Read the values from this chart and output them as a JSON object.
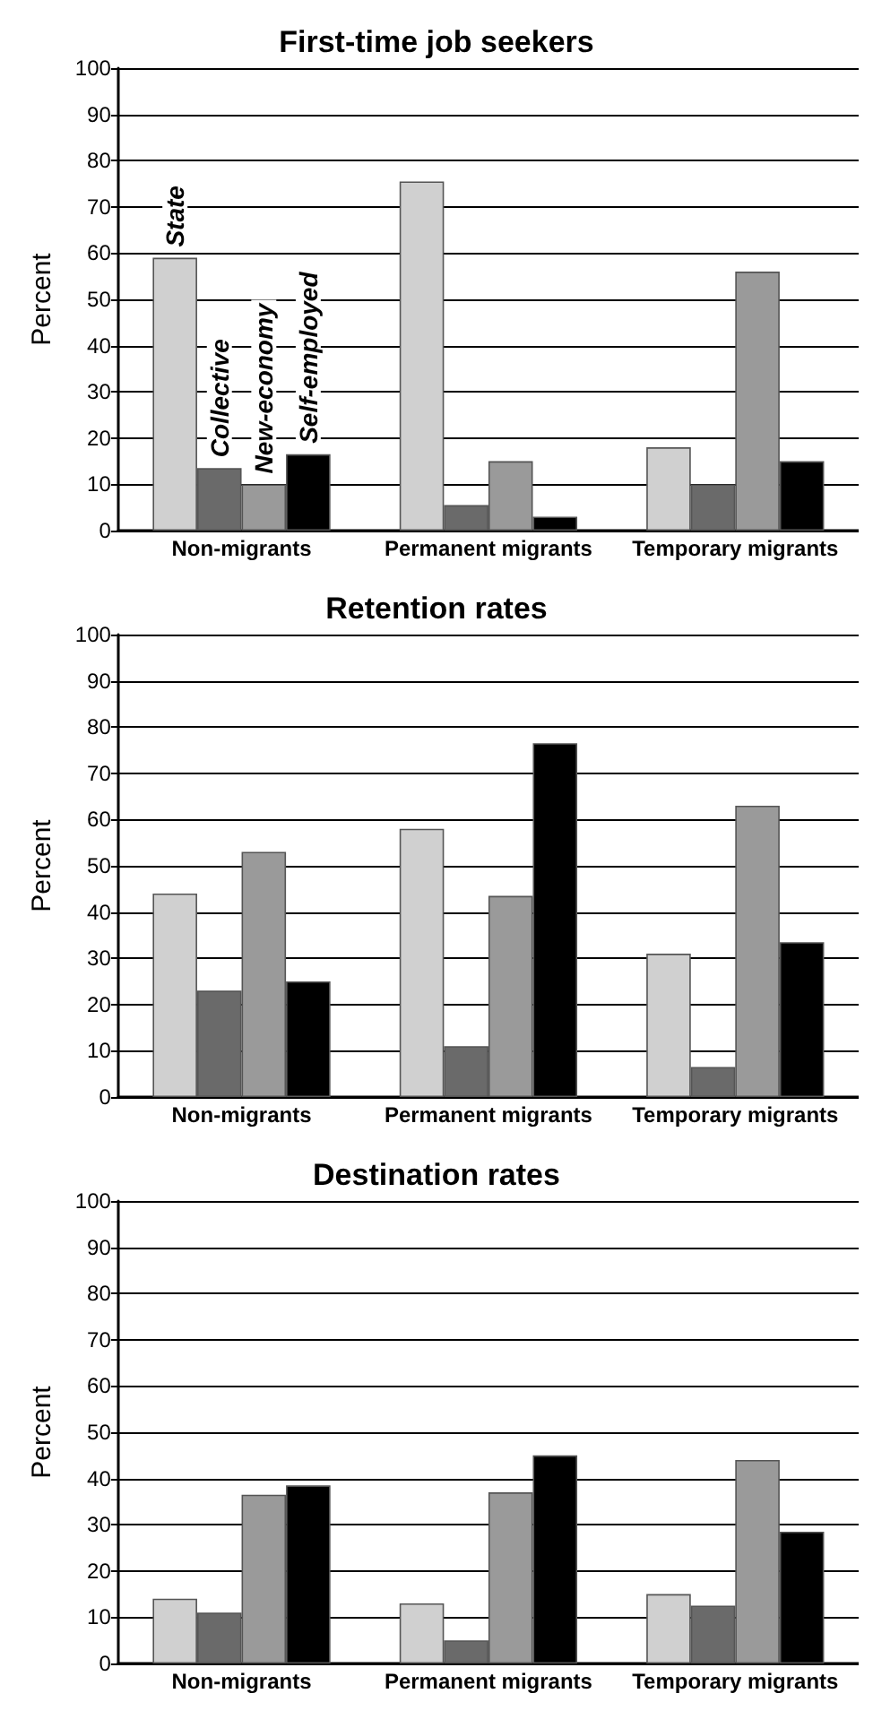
{
  "chart_data": [
    {
      "type": "bar",
      "title": "First-time job seekers",
      "ylabel": "Percent",
      "categories": [
        "Non-migrants",
        "Permanent migrants",
        "Temporary migrants"
      ],
      "ylim": [
        0,
        100
      ],
      "yticks": [
        0,
        10,
        20,
        30,
        40,
        50,
        60,
        70,
        80,
        90,
        100
      ],
      "grid": "y",
      "legend": false,
      "series": [
        {
          "name": "State",
          "color": "#d0d0d0",
          "values": [
            59,
            75.5,
            18
          ]
        },
        {
          "name": "Collective",
          "color": "#6a6a6a",
          "values": [
            13.5,
            5.5,
            10
          ]
        },
        {
          "name": "New-economy",
          "color": "#9a9a9a",
          "values": [
            10,
            15,
            56
          ]
        },
        {
          "name": "Self-employed",
          "color": "#000000",
          "values": [
            16.5,
            3,
            15
          ]
        }
      ]
    },
    {
      "type": "bar",
      "title": "Retention rates",
      "ylabel": "Percent",
      "categories": [
        "Non-migrants",
        "Permanent migrants",
        "Temporary migrants"
      ],
      "ylim": [
        0,
        100
      ],
      "yticks": [
        0,
        10,
        20,
        30,
        40,
        50,
        60,
        70,
        80,
        90,
        100
      ],
      "grid": "y",
      "legend": false,
      "series": [
        {
          "color": "#d0d0d0",
          "values": [
            44,
            58,
            31
          ]
        },
        {
          "color": "#6a6a6a",
          "values": [
            23,
            11,
            6.5
          ]
        },
        {
          "color": "#9a9a9a",
          "values": [
            53,
            43.5,
            63
          ]
        },
        {
          "color": "#000000",
          "values": [
            25,
            76.5,
            33.5
          ]
        }
      ]
    },
    {
      "type": "bar",
      "title": "Destination rates",
      "ylabel": "Percent",
      "categories": [
        "Non-migrants",
        "Permanent migrants",
        "Temporary migrants"
      ],
      "ylim": [
        0,
        100
      ],
      "yticks": [
        0,
        10,
        20,
        30,
        40,
        50,
        60,
        70,
        80,
        90,
        100
      ],
      "grid": "y",
      "legend": false,
      "series": [
        {
          "color": "#d0d0d0",
          "values": [
            14,
            13,
            15
          ]
        },
        {
          "color": "#6a6a6a",
          "values": [
            11,
            5,
            12.5
          ]
        },
        {
          "color": "#9a9a9a",
          "values": [
            36.5,
            37,
            44
          ]
        },
        {
          "color": "#000000",
          "values": [
            38.5,
            45,
            28.5
          ]
        }
      ]
    }
  ]
}
